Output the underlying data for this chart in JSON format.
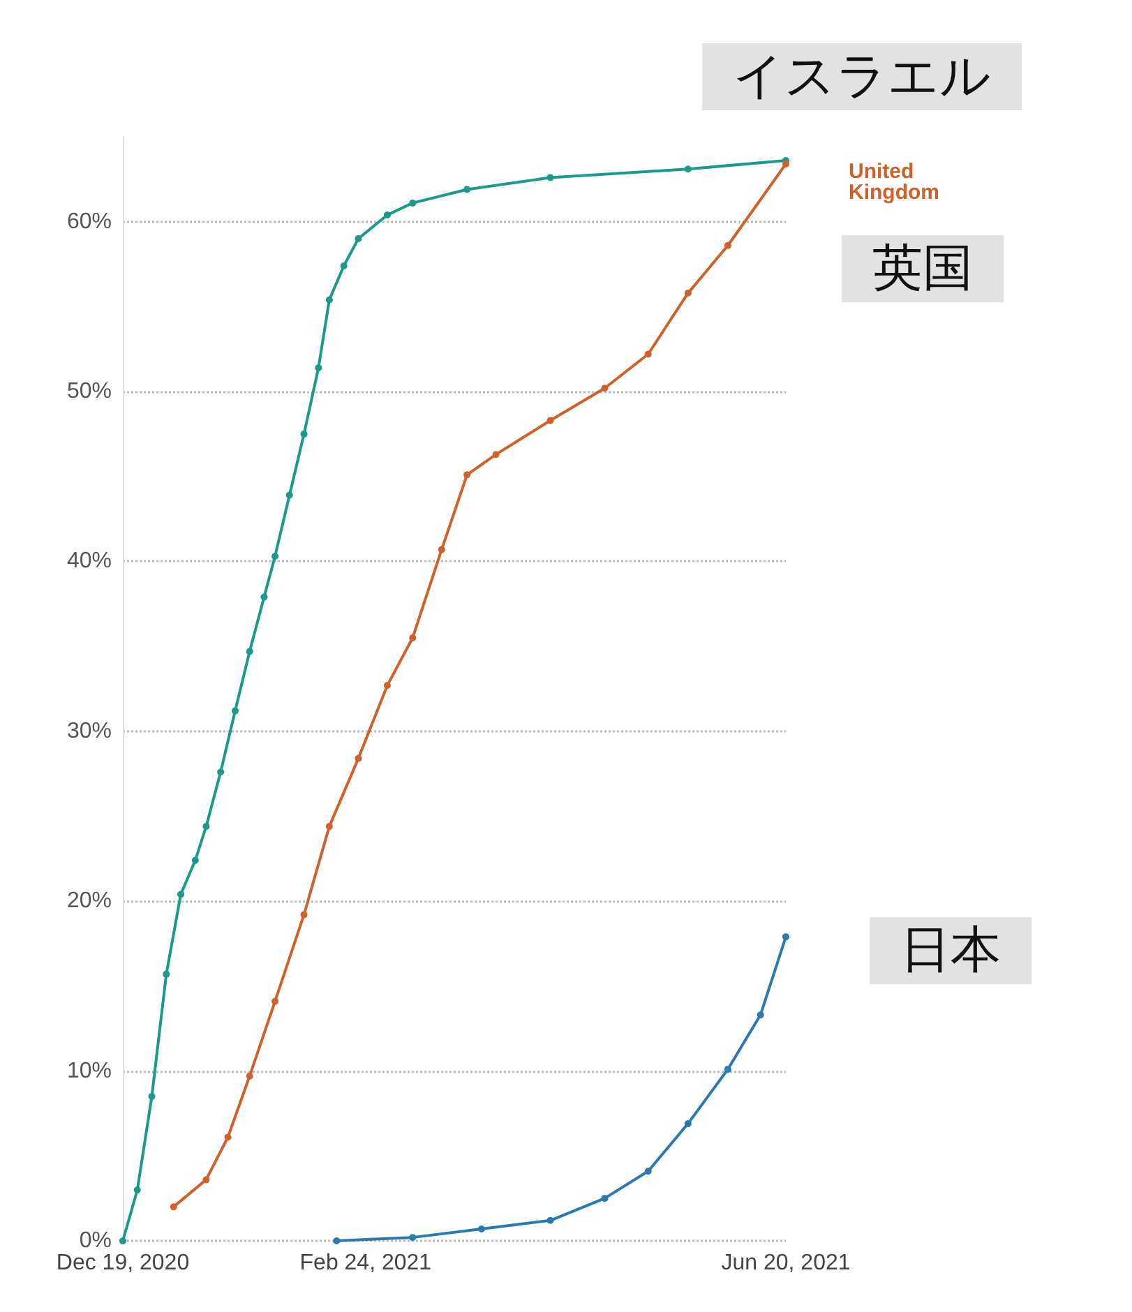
{
  "chart_data": {
    "type": "line",
    "marker": "circle",
    "grid": "y",
    "legend": false,
    "xlim": [
      "2020-12-19",
      "2021-06-20"
    ],
    "xticks": [
      {
        "value": "2020-12-19",
        "label": "Dec 19, 2020"
      },
      {
        "value": "2021-02-24",
        "label": "Feb 24, 2021"
      },
      {
        "value": "2021-06-20",
        "label": "Jun 20, 2021"
      }
    ],
    "ylim": [
      0,
      65
    ],
    "yticks": [
      {
        "value": 0,
        "label": "0%"
      },
      {
        "value": 10,
        "label": "10%"
      },
      {
        "value": 20,
        "label": "20%"
      },
      {
        "value": 30,
        "label": "30%"
      },
      {
        "value": 40,
        "label": "40%"
      },
      {
        "value": 50,
        "label": "50%"
      },
      {
        "value": 60,
        "label": "60%"
      }
    ],
    "annotations": [
      {
        "text": "United Kingdom",
        "x": "2021-06-20",
        "y": 63.4
      }
    ],
    "series": [
      {
        "name": "イスラエル",
        "color": "#1a9a8a",
        "x": [
          "2020-12-19",
          "2020-12-23",
          "2020-12-27",
          "2020-12-31",
          "2021-01-04",
          "2021-01-08",
          "2021-01-11",
          "2021-01-15",
          "2021-01-19",
          "2021-01-23",
          "2021-01-27",
          "2021-01-30",
          "2021-02-03",
          "2021-02-07",
          "2021-02-11",
          "2021-02-14",
          "2021-02-18",
          "2021-02-22",
          "2021-03-02",
          "2021-03-09",
          "2021-03-24",
          "2021-04-16",
          "2021-05-24",
          "2021-06-20"
        ],
        "values": [
          0,
          3,
          8.5,
          15.7,
          20.4,
          22.4,
          24.4,
          27.6,
          31.2,
          34.7,
          37.9,
          40.3,
          43.9,
          47.5,
          51.4,
          55.4,
          57.4,
          59,
          60.4,
          61.1,
          61.9,
          62.6,
          63.1,
          63.6
        ]
      },
      {
        "name": "英国",
        "color": "#d0612a",
        "x": [
          "2021-01-02",
          "2021-01-11",
          "2021-01-17",
          "2021-01-23",
          "2021-01-30",
          "2021-02-07",
          "2021-02-14",
          "2021-02-22",
          "2021-03-02",
          "2021-03-09",
          "2021-03-17",
          "2021-03-24",
          "2021-04-01",
          "2021-04-16",
          "2021-05-01",
          "2021-05-13",
          "2021-05-24",
          "2021-06-04",
          "2021-06-20"
        ],
        "values": [
          2,
          3.6,
          6.1,
          9.7,
          14.1,
          19.2,
          24.4,
          28.4,
          32.7,
          35.5,
          40.7,
          45.1,
          46.3,
          48.3,
          50.2,
          52.2,
          55.8,
          58.6,
          63.4
        ]
      },
      {
        "name": "日本",
        "color": "#2a7ab0",
        "x": [
          "2021-02-16",
          "2021-03-09",
          "2021-03-28",
          "2021-04-16",
          "2021-05-01",
          "2021-05-13",
          "2021-05-24",
          "2021-06-04",
          "2021-06-13",
          "2021-06-20"
        ],
        "values": [
          0,
          0.2,
          0.7,
          1.2,
          2.5,
          4.1,
          6.9,
          10.1,
          13.3,
          17.9
        ]
      }
    ]
  }
}
